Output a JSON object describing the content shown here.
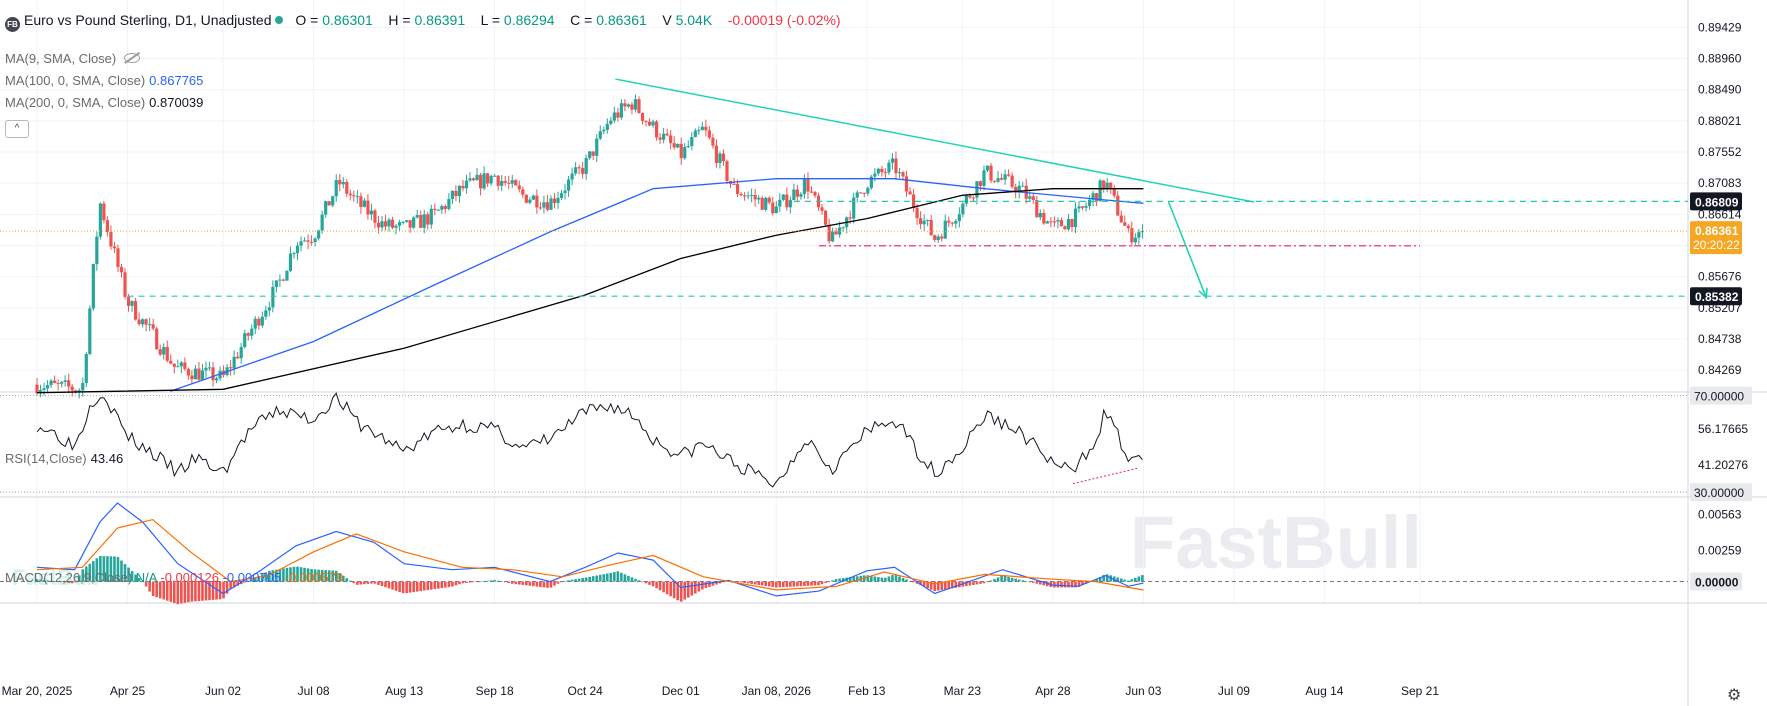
{
  "header": {
    "logo_text": "FB",
    "title": "Euro vs Pound Sterling, D1, Unadjusted",
    "open_label": "O",
    "open": "0.86301",
    "high_label": "H",
    "high": "0.86391",
    "low_label": "L",
    "low": "0.86294",
    "close_label": "C",
    "close": "0.86361",
    "volume_label": "V",
    "volume": "5.04K",
    "change": "-0.00019 (-0.02%)"
  },
  "indicators": {
    "ma9": {
      "label": "MA(9, SMA, Close)",
      "value": ""
    },
    "ma100": {
      "label": "MA(100, 0, SMA, Close)",
      "value": "0.867765"
    },
    "ma200": {
      "label": "MA(200, 0, SMA, Close)",
      "value": "0.870039"
    },
    "collapse_glyph": "^",
    "rsi": {
      "label": "RSI(14,Close)",
      "value": "43.46"
    },
    "macd": {
      "label": "MACD(12,26,9,Close)",
      "signal_na": "N/A",
      "v1": "-0.000126",
      "v2": "-0.000705",
      "v3": "-0.000579"
    }
  },
  "watermark": "FastBull",
  "colors": {
    "up": "#26a69a",
    "down": "#ef5350",
    "ma100": "#2962ff",
    "ma200": "#000000",
    "trendline": "#22d3b5",
    "dashed_level": "#26c6b0",
    "support": "#e91e63",
    "macd_line": "#2962ff",
    "signal_line": "#ff6d00"
  },
  "chart_data": [
    {
      "type": "candlestick",
      "title": "Euro vs Pound Sterling, D1, Unadjusted",
      "x_ticks": [
        "Mar 20, 2025",
        "Apr 25",
        "Jun 02",
        "Jul 08",
        "Aug 13",
        "Sep 18",
        "Oct 24",
        "Dec 01",
        "Jan 08, 2026",
        "Feb 13",
        "Mar 23",
        "Apr 28",
        "Jun 03",
        "Jul 09",
        "Aug 14",
        "Sep 21"
      ],
      "y_ticks": [
        "0.89429",
        "0.88960",
        "0.88490",
        "0.88021",
        "0.87552",
        "0.87083",
        "0.86614",
        "0.86145",
        "0.85676",
        "0.85207",
        "0.84738",
        "0.84269"
      ],
      "ylim": [
        0.8394,
        0.8978
      ],
      "price_labels": [
        {
          "value": 0.86809,
          "text": "0.86809"
        },
        {
          "value": 0.86361,
          "text": "0.86361",
          "countdown": "20:20:22"
        },
        {
          "value": 0.85382,
          "text": "0.85382"
        }
      ],
      "price_path": [
        [
          "Mar 20, 2025",
          0.8405
        ],
        [
          "Apr 07, 2025",
          0.8398
        ],
        [
          "Apr 11, 2025",
          0.856
        ],
        [
          "Apr 14, 2025",
          0.868
        ],
        [
          "Apr 25",
          0.853
        ],
        [
          "May 05, 2025",
          0.848
        ],
        [
          "May 14, 2025",
          0.843
        ],
        [
          "Jun 02",
          0.8415
        ],
        [
          "Jun 12, 2025",
          0.848
        ],
        [
          "Jun 24, 2025",
          0.8555
        ],
        [
          "Jul 01, 2025",
          0.862
        ],
        [
          "Jul 08",
          0.863
        ],
        [
          "Jul 18, 2025",
          0.871
        ],
        [
          "Jul 25, 2025",
          0.868
        ],
        [
          "Aug 05, 2025",
          0.8645
        ],
        [
          "Aug 13",
          0.864
        ],
        [
          "Aug 25, 2025",
          0.866
        ],
        [
          "Sep 05, 2025",
          0.87
        ],
        [
          "Sep 18",
          0.872
        ],
        [
          "Sep 29, 2025",
          0.869
        ],
        [
          "Oct 10, 2025",
          0.868
        ],
        [
          "Oct 24",
          0.8735
        ],
        [
          "Nov 03, 2025",
          0.8805
        ],
        [
          "Nov 12, 2025",
          0.883
        ],
        [
          "Nov 18, 2025",
          0.88
        ],
        [
          "Dec 01",
          0.875
        ],
        [
          "Dec 10, 2025",
          0.879
        ],
        [
          "Dec 22, 2025",
          0.87
        ],
        [
          "Jan 08, 2026",
          0.867
        ],
        [
          "Jan 20, 2026",
          0.871
        ],
        [
          "Jan 30, 2026",
          0.862
        ],
        [
          "Feb 13",
          0.871
        ],
        [
          "Feb 24, 2026",
          0.8735
        ],
        [
          "Mar 03, 2026",
          0.868
        ],
        [
          "Mar 12, 2026",
          0.8625
        ],
        [
          "Mar 23",
          0.8675
        ],
        [
          "Apr 01, 2026",
          0.8725
        ],
        [
          "Apr 15, 2026",
          0.87
        ],
        [
          "Apr 28",
          0.864
        ],
        [
          "May 08, 2026",
          0.866
        ],
        [
          "May 19, 2026",
          0.871
        ],
        [
          "May 28, 2026",
          0.863
        ],
        [
          "Jun 03",
          0.8636
        ]
      ],
      "series": [
        {
          "name": "MA(100, 0, SMA, Close)",
          "last": 0.867765,
          "points": [
            [
              "May 12, 2025",
              0.8395
            ],
            [
              "Jul 08",
              0.847
            ],
            [
              "Aug 25, 2025",
              0.8555
            ],
            [
              "Oct 10, 2025",
              0.8635
            ],
            [
              "Nov 20, 2025",
              0.87
            ],
            [
              "Jan 08, 2026",
              0.8715
            ],
            [
              "Feb 24, 2026",
              0.8715
            ],
            [
              "Apr 01, 2026",
              0.87
            ],
            [
              "May 19, 2026",
              0.8683
            ],
            [
              "Jun 03",
              0.8678
            ]
          ]
        },
        {
          "name": "MA(200, 0, SMA, Close)",
          "last": 0.870039,
          "points": [
            [
              "Mar 20, 2025",
              0.8393
            ],
            [
              "Jun 02",
              0.8398
            ],
            [
              "Aug 13",
              0.846
            ],
            [
              "Oct 24",
              0.854
            ],
            [
              "Dec 01",
              0.8595
            ],
            [
              "Jan 08, 2026",
              0.863
            ],
            [
              "Feb 13",
              0.8655
            ],
            [
              "Mar 23",
              0.869
            ],
            [
              "Apr 28",
              0.87
            ],
            [
              "Jun 03",
              0.87
            ]
          ]
        }
      ],
      "annotations": {
        "trendline": [
          [
            "Nov 05, 2025",
            0.8865
          ],
          [
            "Jul 17, 2026",
            0.868
          ]
        ],
        "resistance_dashed": {
          "value": 0.86809,
          "from": "Jan 15, 2026"
        },
        "support_dashdot": {
          "value": 0.8614,
          "from": "Jan 25, 2026",
          "to": "Sep 21"
        },
        "target_dashed": {
          "value": 0.85382,
          "from": "Apr 25"
        },
        "projection_arrow": [
          [
            "Jun 13, 2026",
            0.868
          ],
          [
            "Jun 28, 2026",
            0.8536
          ]
        ]
      }
    },
    {
      "type": "line",
      "title": "RSI(14,Close)",
      "y_ticks": [
        "70.00000",
        "56.17665",
        "41.20276",
        "30.00000"
      ],
      "ylim": [
        28,
        71.5
      ],
      "levels": [
        70,
        30
      ],
      "last": 43.46,
      "values": [
        [
          "Mar 20, 2025",
          58
        ],
        [
          "Mar 28, 2025",
          54
        ],
        [
          "Apr 04, 2025",
          49
        ],
        [
          "Apr 11, 2025",
          68
        ],
        [
          "Apr 15, 2025",
          72
        ],
        [
          "Apr 25",
          53
        ],
        [
          "May 05, 2025",
          46
        ],
        [
          "May 15, 2025",
          38
        ],
        [
          "May 22, 2025",
          44
        ],
        [
          "Jun 02",
          38
        ],
        [
          "Jun 12, 2025",
          55
        ],
        [
          "Jun 24, 2025",
          64
        ],
        [
          "Jul 08",
          60
        ],
        [
          "Jul 17, 2025",
          70
        ],
        [
          "Jul 25, 2025",
          59
        ],
        [
          "Aug 05, 2025",
          52
        ],
        [
          "Aug 13",
          47
        ],
        [
          "Aug 25, 2025",
          55
        ],
        [
          "Sep 05, 2025",
          58
        ],
        [
          "Sep 18",
          56
        ],
        [
          "Sep 29, 2025",
          48
        ],
        [
          "Oct 10, 2025",
          52
        ],
        [
          "Oct 24",
          63
        ],
        [
          "Nov 03, 2025",
          66
        ],
        [
          "Nov 12, 2025",
          62
        ],
        [
          "Nov 20, 2025",
          52
        ],
        [
          "Dec 01",
          45
        ],
        [
          "Dec 10, 2025",
          50
        ],
        [
          "Dec 22, 2025",
          42
        ],
        [
          "Jan 08, 2026",
          33
        ],
        [
          "Jan 20, 2026",
          53
        ],
        [
          "Jan 30, 2026",
          40
        ],
        [
          "Feb 13",
          55
        ],
        [
          "Feb 24, 2026",
          60
        ],
        [
          "Mar 03, 2026",
          50
        ],
        [
          "Mar 12, 2026",
          38
        ],
        [
          "Mar 23",
          48
        ],
        [
          "Apr 01, 2026",
          62
        ],
        [
          "Apr 15, 2026",
          55
        ],
        [
          "Apr 28",
          42
        ],
        [
          "May 06, 2026",
          38
        ],
        [
          "May 15, 2026",
          52
        ],
        [
          "May 19, 2026",
          64
        ],
        [
          "May 28, 2026",
          44
        ],
        [
          "Jun 03",
          43.46
        ]
      ],
      "divergence": [
        [
          "May 06, 2026",
          33.5
        ],
        [
          "Jun 01, 2026",
          40
        ]
      ]
    },
    {
      "type": "macd",
      "title": "MACD(12,26,9,Close)",
      "y_ticks": [
        "0.00563",
        "0.00259",
        "0.00000"
      ],
      "ylim": [
        -0.0018,
        0.0071
      ],
      "macd_line": [
        [
          "Mar 20, 2025",
          0.0012
        ],
        [
          "Apr 04, 2025",
          0.001
        ],
        [
          "Apr 14, 2025",
          0.005
        ],
        [
          "Apr 21, 2025",
          0.0066
        ],
        [
          "May 01, 2025",
          0.005
        ],
        [
          "May 15, 2025",
          0.0015
        ],
        [
          "Jun 02",
          -0.001
        ],
        [
          "Jun 16, 2025",
          0.0008
        ],
        [
          "Jul 01, 2025",
          0.003
        ],
        [
          "Jul 17, 2025",
          0.0042
        ],
        [
          "Aug 01, 2025",
          0.0033
        ],
        [
          "Aug 13",
          0.0015
        ],
        [
          "Sep 01, 2025",
          0.001
        ],
        [
          "Sep 18",
          0.0012
        ],
        [
          "Oct 10, 2025",
          0.0
        ],
        [
          "Oct 24",
          0.0012
        ],
        [
          "Nov 06, 2025",
          0.0024
        ],
        [
          "Nov 20, 2025",
          0.0018
        ],
        [
          "Dec 01",
          -0.0005
        ],
        [
          "Dec 20, 2025",
          0.0001
        ],
        [
          "Jan 08, 2026",
          -0.0012
        ],
        [
          "Jan 25, 2026",
          -0.0008
        ],
        [
          "Feb 13",
          0.0009
        ],
        [
          "Feb 24, 2026",
          0.0012
        ],
        [
          "Mar 12, 2026",
          -0.001
        ],
        [
          "Mar 23",
          -0.0002
        ],
        [
          "Apr 08, 2026",
          0.001
        ],
        [
          "Apr 28",
          -0.0003
        ],
        [
          "May 08, 2026",
          -0.0004
        ],
        [
          "May 19, 2026",
          0.0005
        ],
        [
          "May 28, 2026",
          -0.0004
        ],
        [
          "Jun 03",
          -0.000126
        ]
      ],
      "signal_line": [
        [
          "Mar 20, 2025",
          0.001
        ],
        [
          "Apr 07, 2025",
          0.0012
        ],
        [
          "Apr 21, 2025",
          0.0045
        ],
        [
          "May 05, 2025",
          0.0052
        ],
        [
          "May 20, 2025",
          0.0025
        ],
        [
          "Jun 05, 2025",
          0.0
        ],
        [
          "Jun 20, 2025",
          0.0005
        ],
        [
          "Jul 08",
          0.0025
        ],
        [
          "Jul 25, 2025",
          0.004
        ],
        [
          "Aug 13",
          0.0025
        ],
        [
          "Sep 05, 2025",
          0.0012
        ],
        [
          "Sep 25, 2025",
          0.001
        ],
        [
          "Oct 15, 2025",
          0.0004
        ],
        [
          "Nov 03, 2025",
          0.0014
        ],
        [
          "Nov 20, 2025",
          0.0022
        ],
        [
          "Dec 10, 2025",
          0.0004
        ],
        [
          "Jan 08, 2026",
          -0.0007
        ],
        [
          "Feb 01, 2026",
          -0.0004
        ],
        [
          "Feb 20, 2026",
          0.0008
        ],
        [
          "Mar 12, 2026",
          -0.0002
        ],
        [
          "Apr 01, 2026",
          0.0006
        ],
        [
          "Apr 28",
          0.0002
        ],
        [
          "May 15, 2026",
          0.0
        ],
        [
          "Jun 03",
          -0.000705
        ]
      ],
      "histogram_last": -0.000579
    }
  ]
}
